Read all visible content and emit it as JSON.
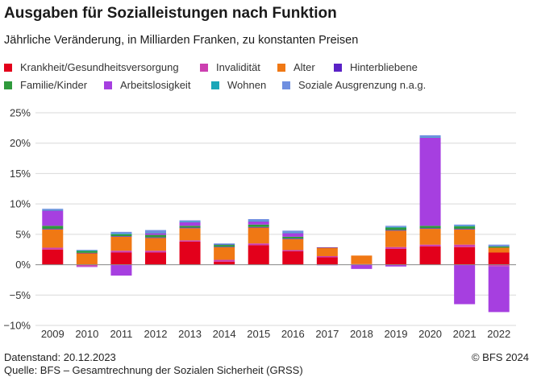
{
  "title": "Ausgaben für Sozialleistungen nach Funktion",
  "subtitle": "Jährliche Veränderung, in Milliarden Franken, zu konstanten Preisen",
  "legend": [
    {
      "label": "Krankheit/Gesundheitsversorgung",
      "color": "#e3001b"
    },
    {
      "label": "Invalidität",
      "color": "#cc3fb0"
    },
    {
      "label": "Alter",
      "color": "#f07814"
    },
    {
      "label": "Hinterbliebene",
      "color": "#5a22c6"
    },
    {
      "label": "Familie/Kinder",
      "color": "#2f9a3c"
    },
    {
      "label": "Arbeitslosigkeit",
      "color": "#a63fe0"
    },
    {
      "label": "Wohnen",
      "color": "#1ba6b8"
    },
    {
      "label": "Soziale Ausgrenzung n.a.g.",
      "color": "#6f8fe0"
    }
  ],
  "footer": {
    "datenstand": "Datenstand: 20.12.2023",
    "quelle": "Quelle: BFS – Gesamtrechnung der Sozialen Sicherheit (GRSS)",
    "copyright": "© BFS 2024"
  },
  "chart_data": {
    "type": "bar",
    "stacked": true,
    "categories": [
      "2009",
      "2010",
      "2011",
      "2012",
      "2013",
      "2014",
      "2015",
      "2016",
      "2017",
      "2018",
      "2019",
      "2020",
      "2021",
      "2022"
    ],
    "ylim": [
      -10,
      25
    ],
    "yticks": [
      -10,
      -5,
      0,
      5,
      10,
      15,
      20,
      25
    ],
    "ytick_labels": [
      "−10%",
      "−5%",
      "0%",
      "5%",
      "10%",
      "15%",
      "20%",
      "25%"
    ],
    "grid": true,
    "legend_position": "top",
    "series": [
      {
        "name": "Krankheit/Gesundheitsversorgung",
        "color": "#e3001b",
        "values": [
          2.5,
          0.0,
          2.0,
          2.0,
          3.8,
          0.5,
          3.2,
          2.2,
          1.2,
          0.0,
          2.6,
          3.0,
          2.9,
          2.0
        ]
      },
      {
        "name": "Invalidität",
        "color": "#cc3fb0",
        "values": [
          0.3,
          -0.3,
          0.3,
          0.3,
          0.2,
          0.3,
          0.3,
          0.2,
          0.2,
          0.1,
          0.3,
          0.3,
          0.4,
          -0.3
        ]
      },
      {
        "name": "Alter",
        "color": "#f07814",
        "values": [
          3.0,
          1.9,
          2.3,
          2.1,
          2.0,
          2.1,
          2.6,
          1.8,
          1.4,
          1.4,
          2.7,
          2.6,
          2.5,
          0.8
        ]
      },
      {
        "name": "Hinterbliebene",
        "color": "#5a22c6",
        "values": [
          0.1,
          0.05,
          0.1,
          0.1,
          0.1,
          0.05,
          0.1,
          0.1,
          0.05,
          0.0,
          0.1,
          0.1,
          0.1,
          0.0
        ]
      },
      {
        "name": "Familie/Kinder",
        "color": "#2f9a3c",
        "values": [
          0.5,
          0.3,
          0.3,
          0.4,
          0.3,
          0.3,
          0.4,
          0.3,
          0.0,
          0.0,
          0.4,
          0.4,
          0.4,
          0.2
        ]
      },
      {
        "name": "Arbeitslosigkeit",
        "color": "#a63fe0",
        "values": [
          2.5,
          -0.05,
          -1.8,
          0.3,
          0.6,
          0.1,
          0.5,
          0.6,
          -0.1,
          -0.7,
          -0.3,
          14.5,
          -6.5,
          -7.5
        ]
      },
      {
        "name": "Wohnen",
        "color": "#1ba6b8",
        "values": [
          0.1,
          0.1,
          0.1,
          0.1,
          0.1,
          0.05,
          0.1,
          0.1,
          0.0,
          0.0,
          0.1,
          0.1,
          0.1,
          0.0
        ]
      },
      {
        "name": "Soziale Ausgrenzung n.a.g.",
        "color": "#6f8fe0",
        "values": [
          0.2,
          0.1,
          0.3,
          0.4,
          0.2,
          0.1,
          0.3,
          0.3,
          0.0,
          0.0,
          0.2,
          0.3,
          0.2,
          0.3
        ]
      }
    ]
  }
}
